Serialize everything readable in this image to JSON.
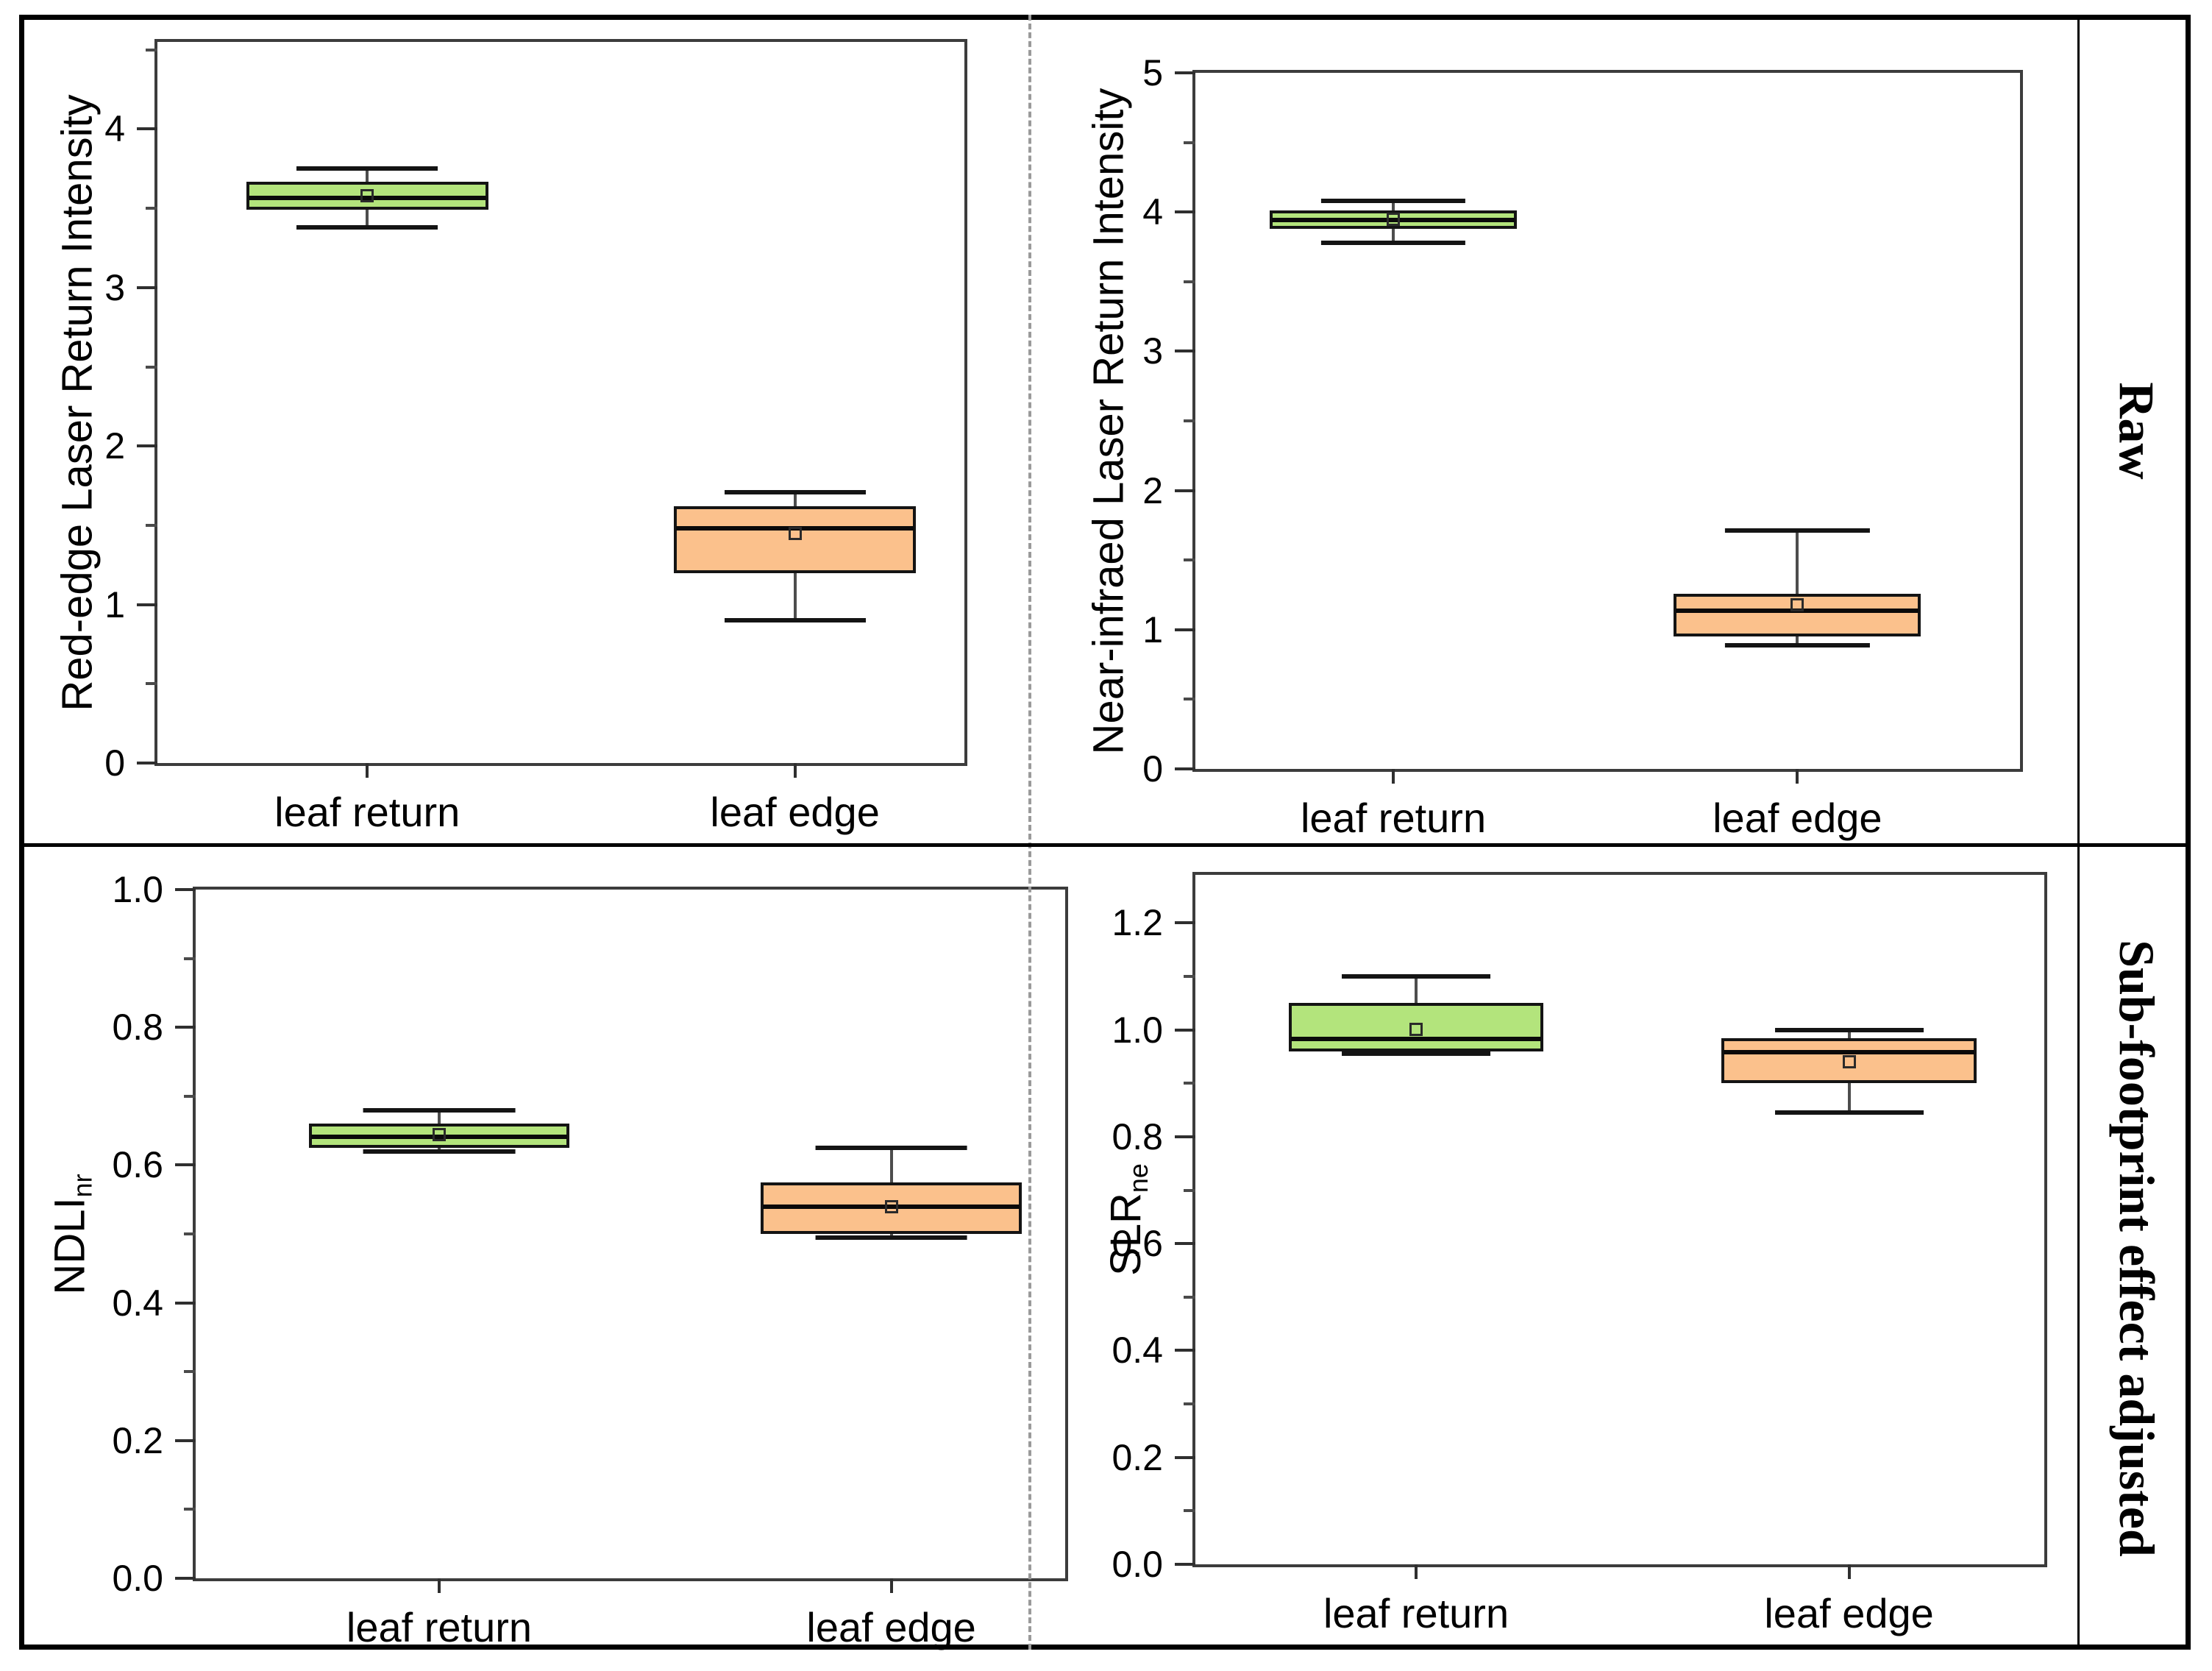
{
  "side_labels": {
    "top": "Raw",
    "bottom": "Sub-footprint effect adjusted"
  },
  "chart_data": [
    {
      "type": "box",
      "position": "top-left",
      "ylabel": "Red-edge Laser Return Intensity",
      "ylabel_sub": "",
      "ylim": [
        0,
        4.55
      ],
      "yticks": [
        0,
        1,
        2,
        3,
        4
      ],
      "ytick_labels": [
        "0",
        "1",
        "2",
        "3",
        "4"
      ],
      "minor_step": 0.5,
      "grid": false,
      "legend": "none",
      "categories": [
        "leaf return",
        "leaf edge"
      ],
      "category_x_pct": [
        26,
        79
      ],
      "boxes": [
        {
          "category": "leaf return",
          "color": "#b3e47c",
          "whisker_low": 3.38,
          "q1": 3.49,
          "median": 3.56,
          "mean": 3.58,
          "q3": 3.67,
          "whisker_high": 3.75
        },
        {
          "category": "leaf edge",
          "color": "#fbc18c",
          "whisker_low": 0.9,
          "q1": 1.2,
          "median": 1.49,
          "mean": 1.45,
          "q3": 1.62,
          "whisker_high": 1.71
        }
      ]
    },
    {
      "type": "box",
      "position": "top-right",
      "ylabel": "Near-infraed Laser Return Intensity",
      "ylabel_sub": "",
      "ylim": [
        0,
        5
      ],
      "yticks": [
        0,
        1,
        2,
        3,
        4,
        5
      ],
      "ytick_labels": [
        "0",
        "1",
        "2",
        "3",
        "4",
        "5"
      ],
      "minor_step": 0.5,
      "grid": false,
      "legend": "none",
      "categories": [
        "leaf return",
        "leaf edge"
      ],
      "category_x_pct": [
        24,
        73
      ],
      "boxes": [
        {
          "category": "leaf return",
          "color": "#b3e47c",
          "whisker_low": 3.78,
          "q1": 3.88,
          "median": 3.94,
          "mean": 3.95,
          "q3": 4.01,
          "whisker_high": 4.08
        },
        {
          "category": "leaf edge",
          "color": "#fbc18c",
          "whisker_low": 0.89,
          "q1": 0.95,
          "median": 1.14,
          "mean": 1.19,
          "q3": 1.26,
          "whisker_high": 1.71
        }
      ]
    },
    {
      "type": "box",
      "position": "bottom-left",
      "ylabel": "NDLI",
      "ylabel_sub": "nr",
      "ylim": [
        0,
        1.0
      ],
      "yticks": [
        0,
        0.2,
        0.4,
        0.6,
        0.8,
        1.0
      ],
      "ytick_labels": [
        "0.0",
        "0.2",
        "0.4",
        "0.6",
        "0.8",
        "1.0"
      ],
      "minor_step": 0.1,
      "grid": false,
      "legend": "none",
      "categories": [
        "leaf return",
        "leaf edge"
      ],
      "category_x_pct": [
        28,
        80
      ],
      "boxes": [
        {
          "category": "leaf return",
          "color": "#b3e47c",
          "whisker_low": 0.62,
          "q1": 0.625,
          "median": 0.64,
          "mean": 0.645,
          "q3": 0.66,
          "whisker_high": 0.68
        },
        {
          "category": "leaf edge",
          "color": "#fbc18c",
          "whisker_low": 0.495,
          "q1": 0.5,
          "median": 0.54,
          "mean": 0.54,
          "q3": 0.575,
          "whisker_high": 0.625
        }
      ]
    },
    {
      "type": "box",
      "position": "bottom-right",
      "ylabel": "SLR",
      "ylabel_sub": "ne",
      "ylim": [
        0,
        1.29
      ],
      "yticks": [
        0,
        0.2,
        0.4,
        0.6,
        0.8,
        1.0,
        1.2
      ],
      "ytick_labels": [
        "0.0",
        "0.2",
        "0.4",
        "0.6",
        "0.8",
        "1.0",
        "1.2"
      ],
      "minor_step": 0.1,
      "grid": false,
      "legend": "none",
      "categories": [
        "leaf return",
        "leaf edge"
      ],
      "category_x_pct": [
        26,
        77
      ],
      "boxes": [
        {
          "category": "leaf return",
          "color": "#b3e47c",
          "whisker_low": 0.955,
          "q1": 0.96,
          "median": 0.98,
          "mean": 1.0,
          "q3": 1.05,
          "whisker_high": 1.1
        },
        {
          "category": "leaf edge",
          "color": "#fbc18c",
          "whisker_low": 0.845,
          "q1": 0.9,
          "median": 0.96,
          "mean": 0.94,
          "q3": 0.985,
          "whisker_high": 1.0
        }
      ]
    }
  ],
  "style": {
    "box_fill_green": "#b3e47c",
    "box_fill_orange": "#fbc18c",
    "box_border": "#141414",
    "whisker_color": "#4d4d4d",
    "axis_color": "#3c3c3c",
    "divider_dashed_color": "#9a9a9a"
  }
}
